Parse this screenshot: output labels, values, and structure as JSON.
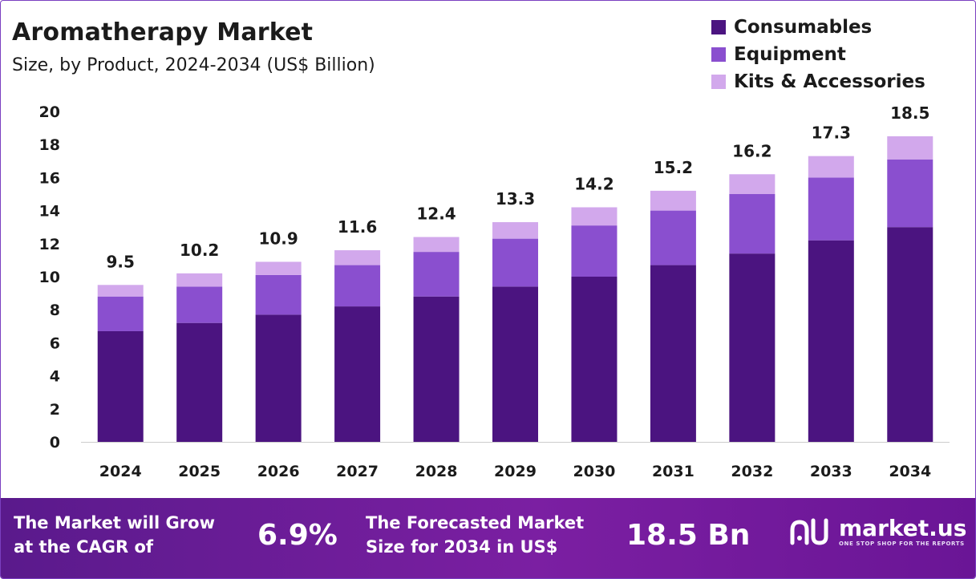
{
  "header": {
    "title": "Aromatherapy Market",
    "subtitle": "Size, by Product, 2024-2034 (US$ Billion)"
  },
  "legend": [
    {
      "label": "Consumables",
      "color": "#4b1480"
    },
    {
      "label": "Equipment",
      "color": "#8a4fcf"
    },
    {
      "label": "Kits & Accessories",
      "color": "#d2a8ec"
    }
  ],
  "chart_data": {
    "type": "bar",
    "stacked": true,
    "categories": [
      "2024",
      "2025",
      "2026",
      "2027",
      "2028",
      "2029",
      "2030",
      "2031",
      "2032",
      "2033",
      "2034"
    ],
    "series": [
      {
        "name": "Consumables",
        "color": "#4b1480",
        "values": [
          6.7,
          7.2,
          7.7,
          8.2,
          8.8,
          9.4,
          10.0,
          10.7,
          11.4,
          12.2,
          13.0
        ]
      },
      {
        "name": "Equipment",
        "color": "#8a4fcf",
        "values": [
          2.1,
          2.2,
          2.4,
          2.5,
          2.7,
          2.9,
          3.1,
          3.3,
          3.6,
          3.8,
          4.1
        ]
      },
      {
        "name": "Kits & Accessories",
        "color": "#d2a8ec",
        "values": [
          0.7,
          0.8,
          0.8,
          0.9,
          0.9,
          1.0,
          1.1,
          1.2,
          1.2,
          1.3,
          1.4
        ]
      }
    ],
    "totals": [
      "9.5",
      "10.2",
      "10.9",
      "11.6",
      "12.4",
      "13.3",
      "14.2",
      "15.2",
      "16.2",
      "17.3",
      "18.5"
    ],
    "ylim": [
      0,
      20
    ],
    "yticks": [
      0,
      2,
      4,
      6,
      8,
      10,
      12,
      14,
      16,
      18,
      20
    ],
    "grid": false,
    "legend_position": "top-right",
    "xlabel": "",
    "ylabel": ""
  },
  "footer": {
    "cagr_text_line1": "The Market will Grow",
    "cagr_text_line2": "at the CAGR of",
    "cagr_value": "6.9%",
    "forecast_text_line1": "The Forecasted Market",
    "forecast_text_line2": "Size for 2034 in US$",
    "forecast_value": "18.5 Bn",
    "logo_name": "market.us",
    "logo_tagline": "ONE STOP SHOP FOR THE REPORTS"
  }
}
